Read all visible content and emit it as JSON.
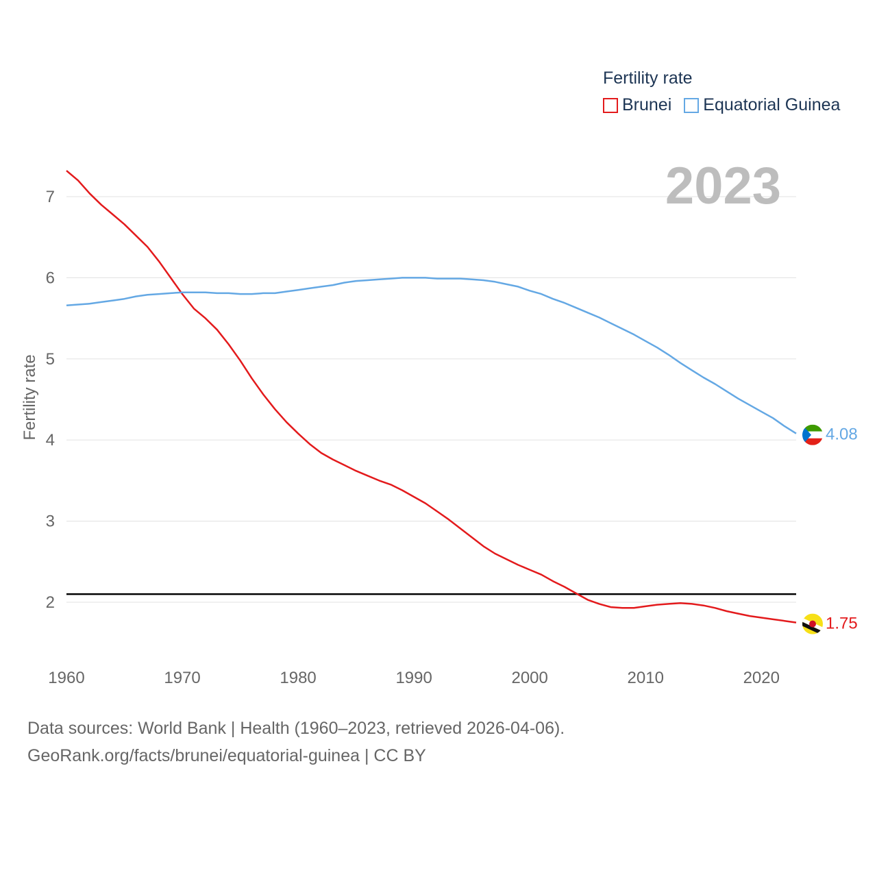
{
  "legend": {
    "title": "Fertility rate",
    "items": [
      {
        "label": "Brunei",
        "color": "#e31a1c"
      },
      {
        "label": "Equatorial Guinea",
        "color": "#64a8e4"
      }
    ]
  },
  "year_label": "2023",
  "footer": {
    "line1": "Data sources: World Bank | Health (1960–2023, retrieved 2026-04-06).",
    "line2": "GeoRank.org/facts/brunei/equatorial-guinea | CC BY"
  },
  "chart_data": {
    "type": "line",
    "title": "Fertility rate",
    "xlabel": "",
    "ylabel": "Fertility rate",
    "xlim": [
      1960,
      2023
    ],
    "ylim": [
      1.2,
      7.5
    ],
    "xticks": [
      1960,
      1970,
      1980,
      1990,
      2000,
      2010,
      2020
    ],
    "yticks": [
      2,
      3,
      4,
      5,
      6,
      7
    ],
    "reference_line": 2.1,
    "series": [
      {
        "name": "Brunei",
        "color": "#e31a1c",
        "end_label": "1.75",
        "flag": "brunei-flag-icon",
        "points": [
          [
            1960,
            7.32
          ],
          [
            1961,
            7.2
          ],
          [
            1962,
            7.04
          ],
          [
            1963,
            6.9
          ],
          [
            1964,
            6.78
          ],
          [
            1965,
            6.66
          ],
          [
            1966,
            6.52
          ],
          [
            1967,
            6.38
          ],
          [
            1968,
            6.2
          ],
          [
            1969,
            6.0
          ],
          [
            1970,
            5.8
          ],
          [
            1971,
            5.62
          ],
          [
            1972,
            5.5
          ],
          [
            1973,
            5.36
          ],
          [
            1974,
            5.18
          ],
          [
            1975,
            4.98
          ],
          [
            1976,
            4.76
          ],
          [
            1977,
            4.56
          ],
          [
            1978,
            4.38
          ],
          [
            1979,
            4.22
          ],
          [
            1980,
            4.08
          ],
          [
            1981,
            3.95
          ],
          [
            1982,
            3.84
          ],
          [
            1983,
            3.76
          ],
          [
            1984,
            3.69
          ],
          [
            1985,
            3.62
          ],
          [
            1986,
            3.56
          ],
          [
            1987,
            3.5
          ],
          [
            1988,
            3.45
          ],
          [
            1989,
            3.38
          ],
          [
            1990,
            3.3
          ],
          [
            1991,
            3.22
          ],
          [
            1992,
            3.12
          ],
          [
            1993,
            3.02
          ],
          [
            1994,
            2.91
          ],
          [
            1995,
            2.8
          ],
          [
            1996,
            2.69
          ],
          [
            1997,
            2.6
          ],
          [
            1998,
            2.53
          ],
          [
            1999,
            2.46
          ],
          [
            2000,
            2.4
          ],
          [
            2001,
            2.34
          ],
          [
            2002,
            2.26
          ],
          [
            2003,
            2.19
          ],
          [
            2004,
            2.11
          ],
          [
            2005,
            2.03
          ],
          [
            2006,
            1.98
          ],
          [
            2007,
            1.94
          ],
          [
            2008,
            1.93
          ],
          [
            2009,
            1.93
          ],
          [
            2010,
            1.95
          ],
          [
            2011,
            1.97
          ],
          [
            2012,
            1.98
          ],
          [
            2013,
            1.99
          ],
          [
            2014,
            1.98
          ],
          [
            2015,
            1.96
          ],
          [
            2016,
            1.93
          ],
          [
            2017,
            1.89
          ],
          [
            2018,
            1.86
          ],
          [
            2019,
            1.83
          ],
          [
            2020,
            1.81
          ],
          [
            2021,
            1.79
          ],
          [
            2022,
            1.77
          ],
          [
            2023,
            1.75
          ]
        ]
      },
      {
        "name": "Equatorial Guinea",
        "color": "#64a8e4",
        "end_label": "4.08",
        "flag": "equatorial-guinea-flag-icon",
        "points": [
          [
            1960,
            5.66
          ],
          [
            1961,
            5.67
          ],
          [
            1962,
            5.68
          ],
          [
            1963,
            5.7
          ],
          [
            1964,
            5.72
          ],
          [
            1965,
            5.74
          ],
          [
            1966,
            5.77
          ],
          [
            1967,
            5.79
          ],
          [
            1968,
            5.8
          ],
          [
            1969,
            5.81
          ],
          [
            1970,
            5.82
          ],
          [
            1971,
            5.82
          ],
          [
            1972,
            5.82
          ],
          [
            1973,
            5.81
          ],
          [
            1974,
            5.81
          ],
          [
            1975,
            5.8
          ],
          [
            1976,
            5.8
          ],
          [
            1977,
            5.81
          ],
          [
            1978,
            5.81
          ],
          [
            1979,
            5.83
          ],
          [
            1980,
            5.85
          ],
          [
            1981,
            5.87
          ],
          [
            1982,
            5.89
          ],
          [
            1983,
            5.91
          ],
          [
            1984,
            5.94
          ],
          [
            1985,
            5.96
          ],
          [
            1986,
            5.97
          ],
          [
            1987,
            5.98
          ],
          [
            1988,
            5.99
          ],
          [
            1989,
            6.0
          ],
          [
            1990,
            6.0
          ],
          [
            1991,
            6.0
          ],
          [
            1992,
            5.99
          ],
          [
            1993,
            5.99
          ],
          [
            1994,
            5.99
          ],
          [
            1995,
            5.98
          ],
          [
            1996,
            5.97
          ],
          [
            1997,
            5.95
          ],
          [
            1998,
            5.92
          ],
          [
            1999,
            5.89
          ],
          [
            2000,
            5.84
          ],
          [
            2001,
            5.8
          ],
          [
            2002,
            5.74
          ],
          [
            2003,
            5.69
          ],
          [
            2004,
            5.63
          ],
          [
            2005,
            5.57
          ],
          [
            2006,
            5.51
          ],
          [
            2007,
            5.44
          ],
          [
            2008,
            5.37
          ],
          [
            2009,
            5.3
          ],
          [
            2010,
            5.22
          ],
          [
            2011,
            5.14
          ],
          [
            2012,
            5.05
          ],
          [
            2013,
            4.95
          ],
          [
            2014,
            4.86
          ],
          [
            2015,
            4.77
          ],
          [
            2016,
            4.69
          ],
          [
            2017,
            4.6
          ],
          [
            2018,
            4.51
          ],
          [
            2019,
            4.43
          ],
          [
            2020,
            4.35
          ],
          [
            2021,
            4.27
          ],
          [
            2022,
            4.17
          ],
          [
            2023,
            4.08
          ]
        ]
      }
    ]
  }
}
